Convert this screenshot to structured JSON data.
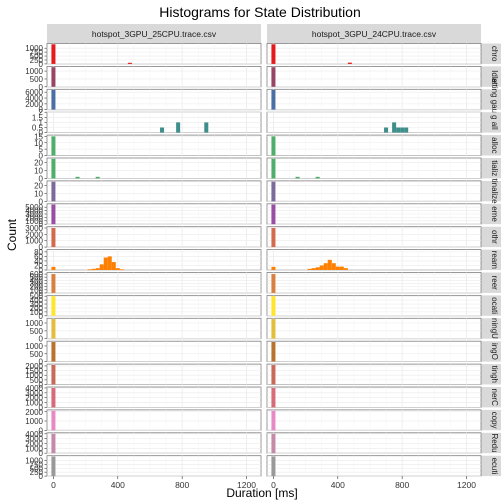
{
  "chart_data": {
    "type": "bar",
    "title": "Histograms for State Distribution",
    "xlabel": "Duration [ms]",
    "ylabel": "Count",
    "xlim": [
      -40,
      1290
    ],
    "x_ticks": [
      0,
      400,
      800,
      1200
    ],
    "bin_width": 25,
    "grid": true,
    "columns": [
      "hotspot_3GPU_25CPU.trace.csv",
      "hotspot_3GPU_24CPU.trace.csv"
    ],
    "rows": [
      {
        "label": "chro",
        "color": "#E41A1C",
        "ymax": 1300,
        "yticks": [
          0,
          250,
          500,
          750,
          1000
        ],
        "bins": [
          [
            [
              0,
              1250
            ],
            [
              475,
              70
            ]
          ],
          [
            [
              0,
              1250
            ],
            [
              475,
              80
            ]
          ]
        ]
      },
      {
        "label": "Idle",
        "color": "#984464",
        "ymax": 1300,
        "yticks": [
          0,
          500,
          1000
        ],
        "bins": [
          [
            [
              0,
              1250
            ]
          ],
          [
            [
              0,
              1250
            ]
          ]
        ]
      },
      {
        "label": "atting gauss",
        "color": "#4A6FA5",
        "ymax": 7000,
        "yticks": [
          0,
          2000,
          4000,
          6000
        ],
        "bins": [
          [
            [
              0,
              6800
            ]
          ],
          [
            [
              0,
              6800
            ]
          ]
        ]
      },
      {
        "label": "g all",
        "color": "#3F8E8C",
        "ymax": 2.0,
        "yticks": [
          0.0,
          0.5,
          1.0,
          1.5,
          2.0
        ],
        "bins": [
          [
            [
              675,
              0.5
            ],
            [
              775,
              1.0
            ],
            [
              950,
              1.0
            ]
          ],
          [
            [
              700,
              0.5
            ],
            [
              750,
              1.0
            ],
            [
              775,
              0.5
            ],
            [
              800,
              0.5
            ],
            [
              825,
              0.5
            ]
          ]
        ]
      },
      {
        "label": "alloc",
        "color": "#4DAF6A",
        "ymax": 16,
        "yticks": [
          0,
          5,
          10,
          15
        ],
        "bins": [
          [
            [
              0,
              15
            ]
          ],
          [
            [
              0,
              15
            ]
          ]
        ]
      },
      {
        "label": "tializ",
        "color": "#4DAF6A",
        "ymax": 26,
        "yticks": [
          0,
          10,
          20
        ],
        "bins": [
          [
            [
              0,
              25
            ],
            [
              150,
              2
            ],
            [
              275,
              2
            ]
          ],
          [
            [
              0,
              25
            ],
            [
              150,
              2
            ],
            [
              275,
              2
            ]
          ]
        ]
      },
      {
        "label": "tinalize",
        "color": "#7B6A9A",
        "ymax": 26,
        "yticks": [
          0,
          10,
          20
        ],
        "bins": [
          [
            [
              0,
              25
            ]
          ],
          [
            [
              0,
              25
            ]
          ]
        ]
      },
      {
        "label": "eme",
        "color": "#984EA3",
        "ymax": 6000,
        "yticks": [
          0,
          1000,
          2000,
          3000,
          4000,
          5000
        ],
        "bins": [
          [
            [
              0,
              5800
            ]
          ],
          [
            [
              0,
              5800
            ]
          ]
        ]
      },
      {
        "label": "othr",
        "color": "#D36A4B",
        "ymax": 3200,
        "yticks": [
          0,
          1000,
          2000,
          3000
        ],
        "bins": [
          [
            [
              0,
              3000
            ]
          ],
          [
            [
              0,
              3000
            ]
          ]
        ]
      },
      {
        "label": "ream",
        "color": "#FF7F00",
        "ymax": 90,
        "yticks": [
          0,
          20,
          40,
          60,
          80
        ],
        "bins": [
          [
            [
              0,
              14
            ],
            [
              225,
              3
            ],
            [
              250,
              5
            ],
            [
              275,
              8
            ],
            [
              300,
              25
            ],
            [
              325,
              55
            ],
            [
              350,
              60
            ],
            [
              375,
              35
            ],
            [
              400,
              8
            ],
            [
              425,
              3
            ]
          ],
          [
            [
              0,
              14
            ],
            [
              225,
              5
            ],
            [
              250,
              8
            ],
            [
              275,
              12
            ],
            [
              300,
              20
            ],
            [
              325,
              30
            ],
            [
              350,
              45
            ],
            [
              375,
              30
            ],
            [
              400,
              15
            ],
            [
              425,
              15
            ],
            [
              450,
              8
            ]
          ]
        ]
      },
      {
        "label": "reer",
        "color": "#D98040",
        "ymax": 650,
        "yticks": [
          0,
          100,
          200,
          300,
          400,
          500,
          600
        ],
        "bins": [
          [
            [
              0,
              600
            ]
          ],
          [
            [
              0,
              600
            ]
          ]
        ]
      },
      {
        "label": "ocati",
        "color": "#FFE52C",
        "ymax": 520,
        "yticks": [
          0,
          100,
          200,
          300,
          400,
          500
        ],
        "bins": [
          [
            [
              0,
              500
            ]
          ],
          [
            [
              0,
              500
            ]
          ]
        ]
      },
      {
        "label": "ningU",
        "color": "#E2BE3A",
        "ymax": 1300,
        "yticks": [
          0,
          500,
          1000
        ],
        "bins": [
          [
            [
              0,
              1250
            ]
          ],
          [
            [
              0,
              1250
            ]
          ]
        ]
      },
      {
        "label": "ingO",
        "color": "#B8742F",
        "ymax": 1300,
        "yticks": [
          0,
          500,
          1000
        ],
        "bins": [
          [
            [
              0,
              1250
            ]
          ],
          [
            [
              0,
              1250
            ]
          ]
        ]
      },
      {
        "label": "tingh",
        "color": "#C76A5A",
        "ymax": 2200,
        "yticks": [
          0,
          500,
          1000,
          1500,
          2000
        ],
        "bins": [
          [
            [
              0,
              2100
            ]
          ],
          [
            [
              0,
              2100
            ]
          ]
        ]
      },
      {
        "label": "nerC",
        "color": "#D86A7A",
        "ymax": 4200,
        "yticks": [
          0,
          1000,
          2000,
          3000,
          4000
        ],
        "bins": [
          [
            [
              0,
              4000
            ]
          ],
          [
            [
              0,
              4000
            ]
          ]
        ]
      },
      {
        "label": "copy",
        "color": "#E78AC3",
        "ymax": 2200,
        "yticks": [
          0,
          1000,
          2000
        ],
        "bins": [
          [
            [
              0,
              2100
            ]
          ],
          [
            [
              0,
              2100
            ]
          ]
        ]
      },
      {
        "label": "Redu",
        "color": "#C48AA8",
        "ymax": 4200,
        "yticks": [
          0,
          1000,
          2000,
          3000,
          4000
        ],
        "bins": [
          [
            [
              0,
              4000
            ]
          ],
          [
            [
              0,
              4000
            ]
          ]
        ]
      },
      {
        "label": "ecuti",
        "color": "#999999",
        "ymax": 1300,
        "yticks": [
          0,
          250,
          500,
          750,
          1000
        ],
        "bins": [
          [
            [
              0,
              1250
            ]
          ],
          [
            [
              0,
              1250
            ]
          ]
        ]
      }
    ]
  }
}
